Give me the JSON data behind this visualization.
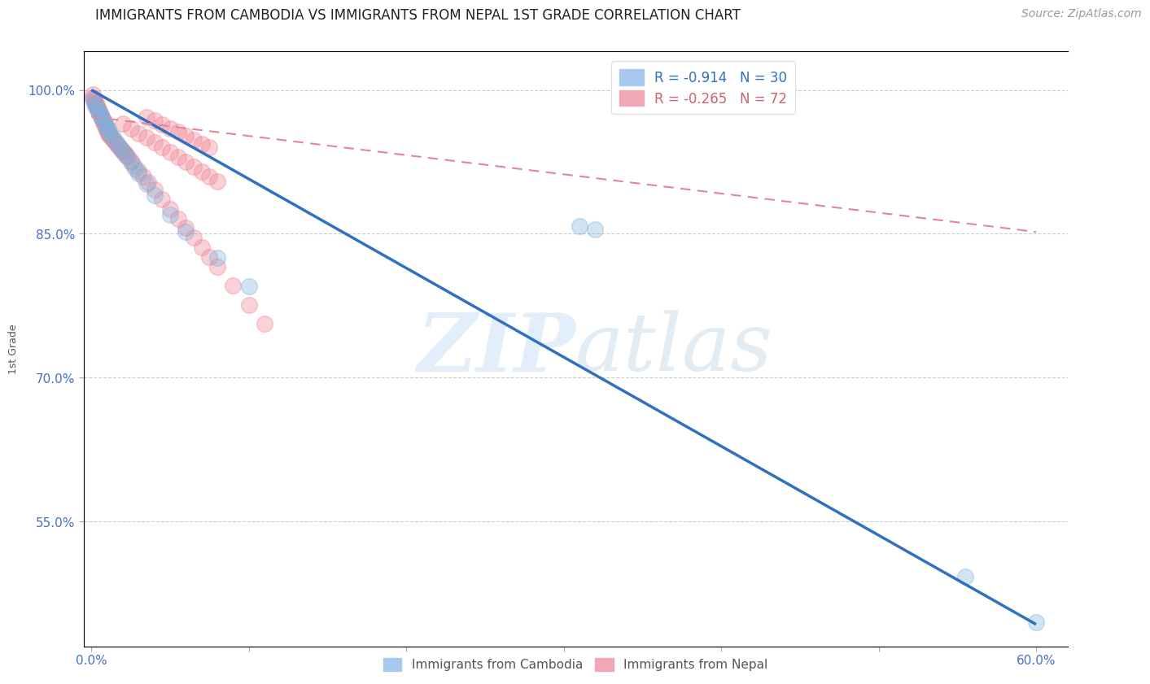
{
  "title": "IMMIGRANTS FROM CAMBODIA VS IMMIGRANTS FROM NEPAL 1ST GRADE CORRELATION CHART",
  "source": "Source: ZipAtlas.com",
  "ylabel": "1st Grade",
  "x_tick_labels": [
    "0.0%",
    "",
    "",
    "",
    "",
    "",
    "60.0%"
  ],
  "x_tick_values": [
    0.0,
    0.1,
    0.2,
    0.3,
    0.4,
    0.5,
    0.6
  ],
  "y_tick_labels": [
    "100.0%",
    "85.0%",
    "70.0%",
    "55.0%"
  ],
  "y_tick_values": [
    1.0,
    0.85,
    0.7,
    0.55
  ],
  "xlim": [
    -0.005,
    0.62
  ],
  "ylim": [
    0.42,
    1.04
  ],
  "cambodia_scatter_x": [
    0.001,
    0.002,
    0.003,
    0.004,
    0.005,
    0.006,
    0.007,
    0.008,
    0.009,
    0.01,
    0.011,
    0.012,
    0.014,
    0.016,
    0.018,
    0.02,
    0.022,
    0.025,
    0.028,
    0.03,
    0.035,
    0.04,
    0.05,
    0.06,
    0.08,
    0.1,
    0.31,
    0.32,
    0.555,
    0.6
  ],
  "cambodia_scatter_y": [
    0.99,
    0.985,
    0.982,
    0.979,
    0.976,
    0.973,
    0.97,
    0.967,
    0.964,
    0.961,
    0.958,
    0.955,
    0.95,
    0.945,
    0.94,
    0.936,
    0.932,
    0.925,
    0.918,
    0.913,
    0.902,
    0.89,
    0.87,
    0.852,
    0.825,
    0.795,
    0.858,
    0.855,
    0.493,
    0.445
  ],
  "nepal_scatter_x": [
    0.001,
    0.001,
    0.002,
    0.002,
    0.003,
    0.003,
    0.004,
    0.004,
    0.005,
    0.005,
    0.006,
    0.006,
    0.007,
    0.007,
    0.008,
    0.008,
    0.009,
    0.009,
    0.01,
    0.01,
    0.011,
    0.012,
    0.013,
    0.014,
    0.015,
    0.016,
    0.017,
    0.018,
    0.019,
    0.02,
    0.021,
    0.022,
    0.023,
    0.025,
    0.027,
    0.03,
    0.033,
    0.036,
    0.04,
    0.045,
    0.05,
    0.055,
    0.06,
    0.065,
    0.07,
    0.075,
    0.08,
    0.09,
    0.1,
    0.11,
    0.02,
    0.025,
    0.03,
    0.035,
    0.04,
    0.045,
    0.05,
    0.055,
    0.06,
    0.065,
    0.07,
    0.075,
    0.08,
    0.035,
    0.04,
    0.045,
    0.05,
    0.055,
    0.06,
    0.065,
    0.07,
    0.075
  ],
  "nepal_scatter_y": [
    0.995,
    0.992,
    0.99,
    0.988,
    0.986,
    0.984,
    0.982,
    0.98,
    0.978,
    0.976,
    0.974,
    0.972,
    0.97,
    0.968,
    0.966,
    0.964,
    0.962,
    0.96,
    0.958,
    0.956,
    0.954,
    0.952,
    0.95,
    0.948,
    0.946,
    0.944,
    0.942,
    0.94,
    0.938,
    0.936,
    0.934,
    0.932,
    0.93,
    0.926,
    0.922,
    0.916,
    0.91,
    0.904,
    0.896,
    0.886,
    0.876,
    0.866,
    0.856,
    0.846,
    0.836,
    0.826,
    0.816,
    0.796,
    0.776,
    0.756,
    0.965,
    0.96,
    0.955,
    0.95,
    0.945,
    0.94,
    0.935,
    0.93,
    0.925,
    0.92,
    0.915,
    0.91,
    0.905,
    0.972,
    0.968,
    0.964,
    0.96,
    0.956,
    0.952,
    0.948,
    0.944,
    0.94
  ],
  "cambodia_line_x": [
    0.0,
    0.6
  ],
  "cambodia_line_y": [
    1.0,
    0.443
  ],
  "nepal_line_x": [
    0.0,
    0.6
  ],
  "nepal_line_y": [
    0.972,
    0.852
  ],
  "cambodia_color": "#7ab3e0",
  "nepal_color": "#f08090",
  "cambodia_line_color": "#3070c0",
  "nepal_line_color": "#e08898",
  "watermark_zip": "ZIP",
  "watermark_atlas": "atlas",
  "background_color": "#ffffff",
  "title_fontsize": 12,
  "axis_label_color": "#4472c4",
  "grid_color": "#c8c8c8",
  "legend_text_colors": [
    "#3070c0",
    "#d06070"
  ]
}
